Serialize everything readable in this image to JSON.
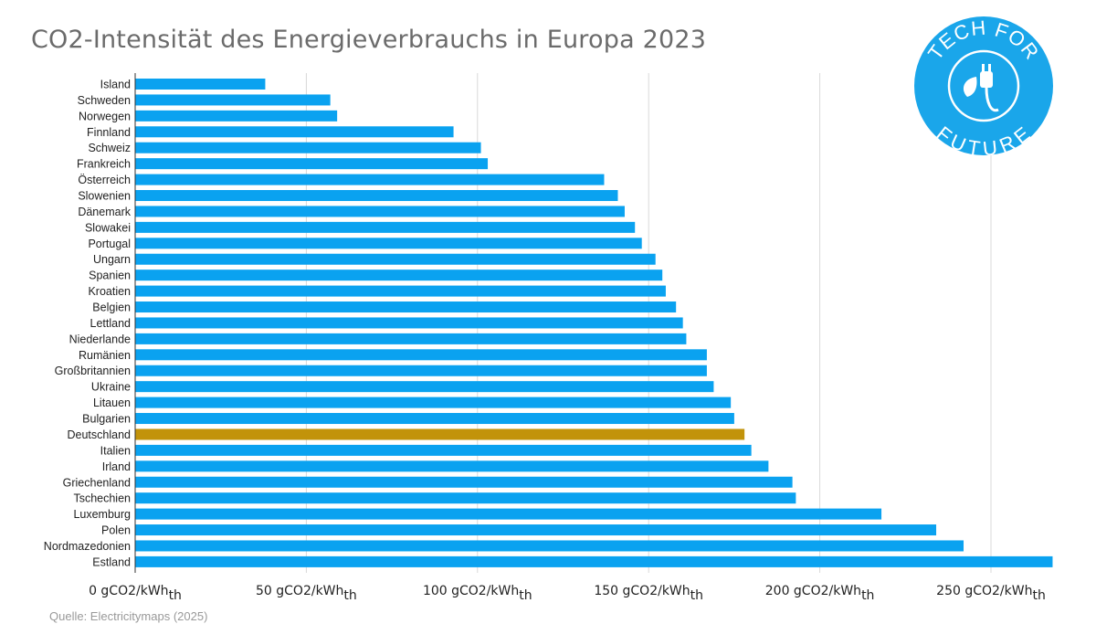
{
  "title": "CO2-Intensität des Energieverbrauchs in Europa 2023",
  "source": "Quelle: Electricitymaps (2025)",
  "logo": {
    "top_text": "TECH FOR",
    "bottom_text": "FUTURE",
    "icon": "plug-leaf-icon",
    "color": "#1aa6ea"
  },
  "colors": {
    "bar": "#0aa2f0",
    "highlight": "#c2930a",
    "grid": "#d9d9d9",
    "axis": "#333333"
  },
  "chart_data": {
    "type": "bar",
    "orientation": "horizontal",
    "title": "CO2-Intensität des Energieverbrauchs in Europa 2023",
    "xlim": [
      0,
      250
    ],
    "xticks": [
      0,
      50,
      100,
      150,
      200,
      250
    ],
    "tick_label_main": "gCO2/kWh",
    "tick_label_sub": "th",
    "grid": true,
    "highlight_category": "Deutschland",
    "categories": [
      "Island",
      "Schweden",
      "Norwegen",
      "Finnland",
      "Schweiz",
      "Frankreich",
      "Österreich",
      "Slowenien",
      "Dänemark",
      "Slowakei",
      "Portugal",
      "Ungarn",
      "Spanien",
      "Kroatien",
      "Belgien",
      "Lettland",
      "Niederlande",
      "Rumänien",
      "Großbritannien",
      "Ukraine",
      "Litauen",
      "Bulgarien",
      "Deutschland",
      "Italien",
      "Irland",
      "Griechenland",
      "Tschechien",
      "Luxemburg",
      "Polen",
      "Nordmazedonien",
      "Estland"
    ],
    "values": [
      38,
      57,
      59,
      93,
      101,
      103,
      137,
      141,
      143,
      146,
      148,
      152,
      154,
      155,
      158,
      160,
      161,
      167,
      167,
      169,
      174,
      175,
      178,
      180,
      185,
      192,
      193,
      218,
      234,
      242,
      268
    ]
  }
}
